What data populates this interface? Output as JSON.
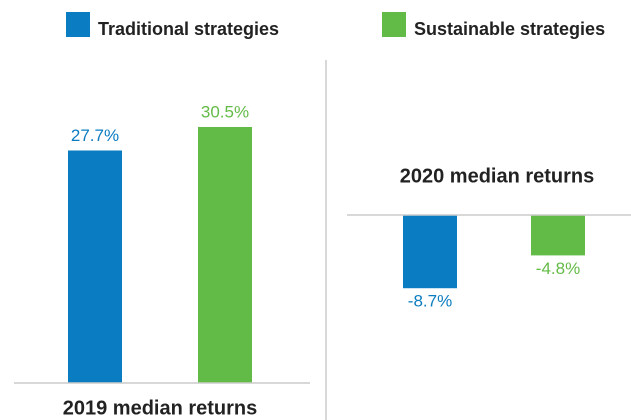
{
  "chart_data": [
    {
      "type": "bar",
      "title": "2019 median returns",
      "ylim": [
        0,
        33
      ],
      "series": [
        {
          "name": "Traditional strategies",
          "color": "#0a7cc1",
          "values": [
            27.7
          ],
          "value_labels": [
            "27.7%"
          ]
        },
        {
          "name": "Sustainable strategies",
          "color": "#63bb47",
          "values": [
            30.5
          ],
          "value_labels": [
            "30.5%"
          ]
        }
      ]
    },
    {
      "type": "bar",
      "title": "2020 median returns",
      "ylim": [
        -12,
        0
      ],
      "series": [
        {
          "color": "#0a7cc1",
          "values": [
            -8.7
          ],
          "value_labels": [
            "-8.7%"
          ]
        },
        {
          "color": "#63bb47",
          "values": [
            -4.8
          ],
          "value_labels": [
            "-4.8%"
          ]
        }
      ]
    }
  ]
}
